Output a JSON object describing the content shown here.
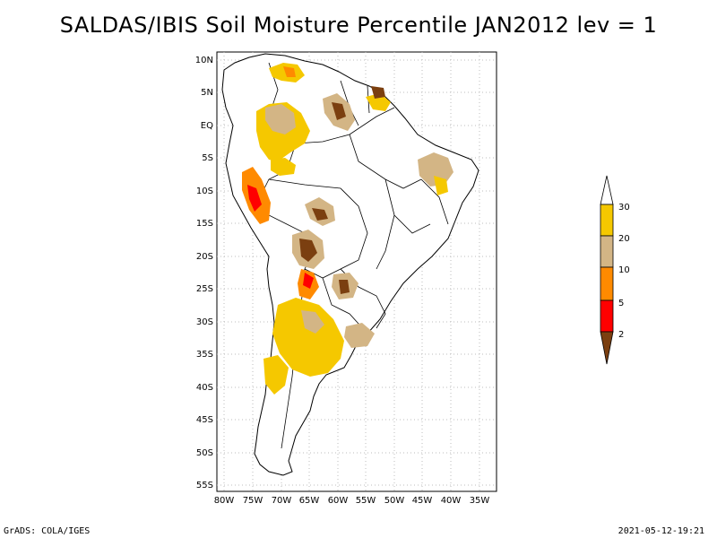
{
  "title": "SALDAS/IBIS Soil Moisture Percentile JAN2012 lev = 1",
  "footer": {
    "left": "GrADS: COLA/IGES",
    "right": "2021-05-12-19:21"
  },
  "map": {
    "lon_ticks": [
      "80W",
      "75W",
      "70W",
      "65W",
      "60W",
      "55W",
      "50W",
      "45W",
      "40W",
      "35W"
    ],
    "lat_ticks": [
      "10N",
      "5N",
      "EQ",
      "5S",
      "10S",
      "15S",
      "20S",
      "25S",
      "30S",
      "35S",
      "40S",
      "45S",
      "50S",
      "55S"
    ],
    "lon_range": [
      -81,
      -33
    ],
    "lat_range": [
      12,
      -56
    ],
    "grid": true
  },
  "legend": {
    "colors": {
      "c30": "#ffffff",
      "c20_30": "#f5c800",
      "c10_20": "#d3b585",
      "c5_10": "#ff8a00",
      "c2_5": "#ff0000",
      "c0_2": "#7b3f10"
    },
    "labels": [
      "30",
      "20",
      "10",
      "5",
      "2"
    ]
  }
}
